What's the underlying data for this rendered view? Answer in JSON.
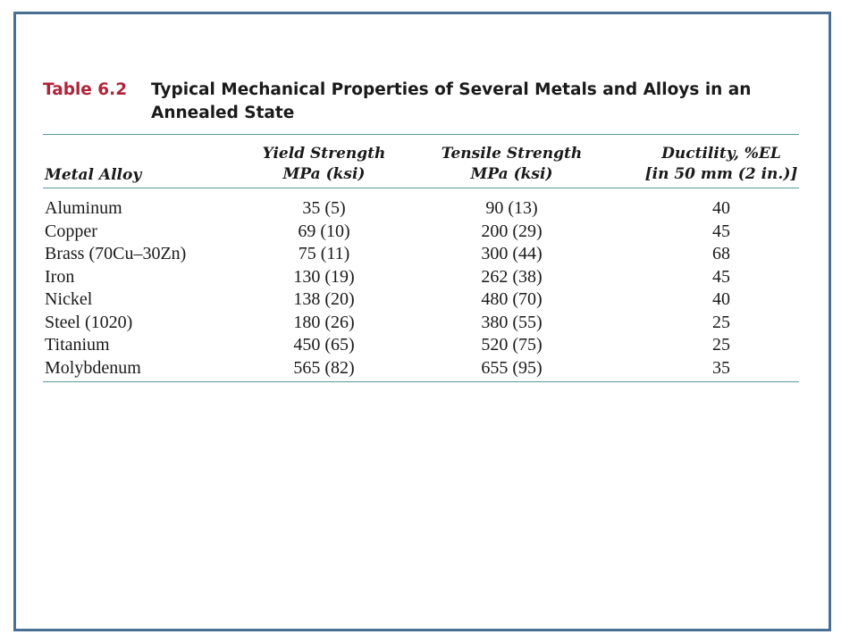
{
  "caption": {
    "number": "Table 6.2",
    "title": "Typical Mechanical Properties of Several Metals and Alloys in an Annealed State"
  },
  "headers": {
    "alloy": "Metal Alloy",
    "yield_line1": "Yield Strength",
    "yield_line2": "MPa (ksi)",
    "tensile_line1": "Tensile Strength",
    "tensile_line2": "MPa (ksi)",
    "ductility_line1": "Ductility, %EL",
    "ductility_line2": "[in 50 mm (2 in.)]"
  },
  "rows": [
    {
      "alloy": "Aluminum",
      "yield": "35 (5)",
      "tensile": "90 (13)",
      "ductility": "40"
    },
    {
      "alloy": "Copper",
      "yield": "69 (10)",
      "tensile": "200 (29)",
      "ductility": "45"
    },
    {
      "alloy": "Brass (70Cu–30Zn)",
      "yield": "75 (11)",
      "tensile": "300 (44)",
      "ductility": "68"
    },
    {
      "alloy": "Iron",
      "yield": "130 (19)",
      "tensile": "262 (38)",
      "ductility": "45"
    },
    {
      "alloy": "Nickel",
      "yield": "138 (20)",
      "tensile": "480 (70)",
      "ductility": "40"
    },
    {
      "alloy": "Steel (1020)",
      "yield": "180 (26)",
      "tensile": "380 (55)",
      "ductility": "25"
    },
    {
      "alloy": "Titanium",
      "yield": "450 (65)",
      "tensile": "520 (75)",
      "ductility": "25"
    },
    {
      "alloy": "Molybdenum",
      "yield": "565 (82)",
      "tensile": "655 (95)",
      "ductility": "35"
    }
  ]
}
